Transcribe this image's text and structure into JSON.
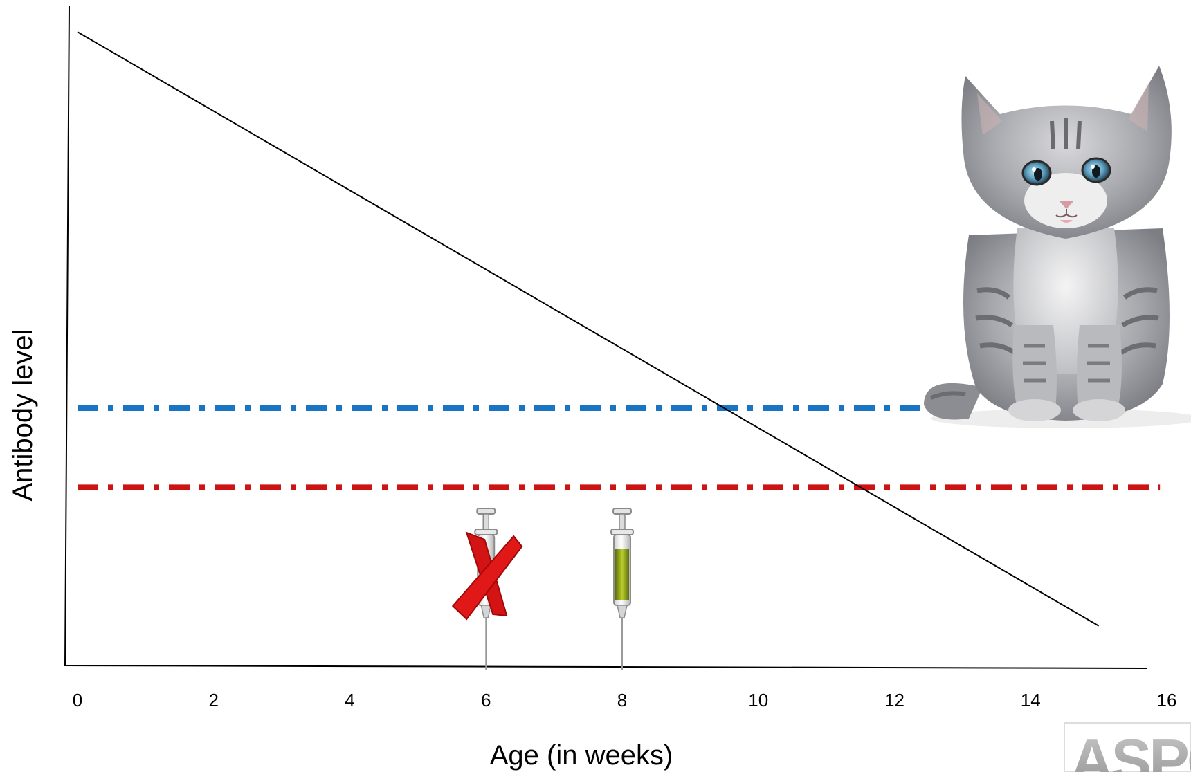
{
  "chart_data": {
    "type": "line",
    "xlabel": "Age (in weeks)",
    "ylabel": "Antibody level",
    "xlim": [
      0,
      16
    ],
    "ylim": [
      0,
      1
    ],
    "x_ticks": [
      0,
      2,
      4,
      6,
      8,
      10,
      12,
      14,
      16
    ],
    "y_ticks": [],
    "grid": false,
    "series": [
      {
        "style": "solid",
        "color": "#000000",
        "x": [
          0,
          15
        ],
        "y": [
          0.96,
          0.06
        ]
      }
    ],
    "threshold_lines": [
      {
        "y": 0.39,
        "x_start": 0,
        "x_end": 12.5,
        "color": "#1a74c4",
        "style": "dash-dot"
      },
      {
        "y": 0.27,
        "x_start": 0,
        "x_end": 15.9,
        "color": "#cc1414",
        "style": "dash-dot"
      }
    ],
    "markers": [
      {
        "x": 6,
        "icon": "syringe-icon",
        "crossed_out": true
      },
      {
        "x": 8,
        "icon": "syringe-icon",
        "crossed_out": false
      }
    ]
  },
  "images": {
    "kitten": "kitten-image",
    "logo_text": "ASPC"
  }
}
